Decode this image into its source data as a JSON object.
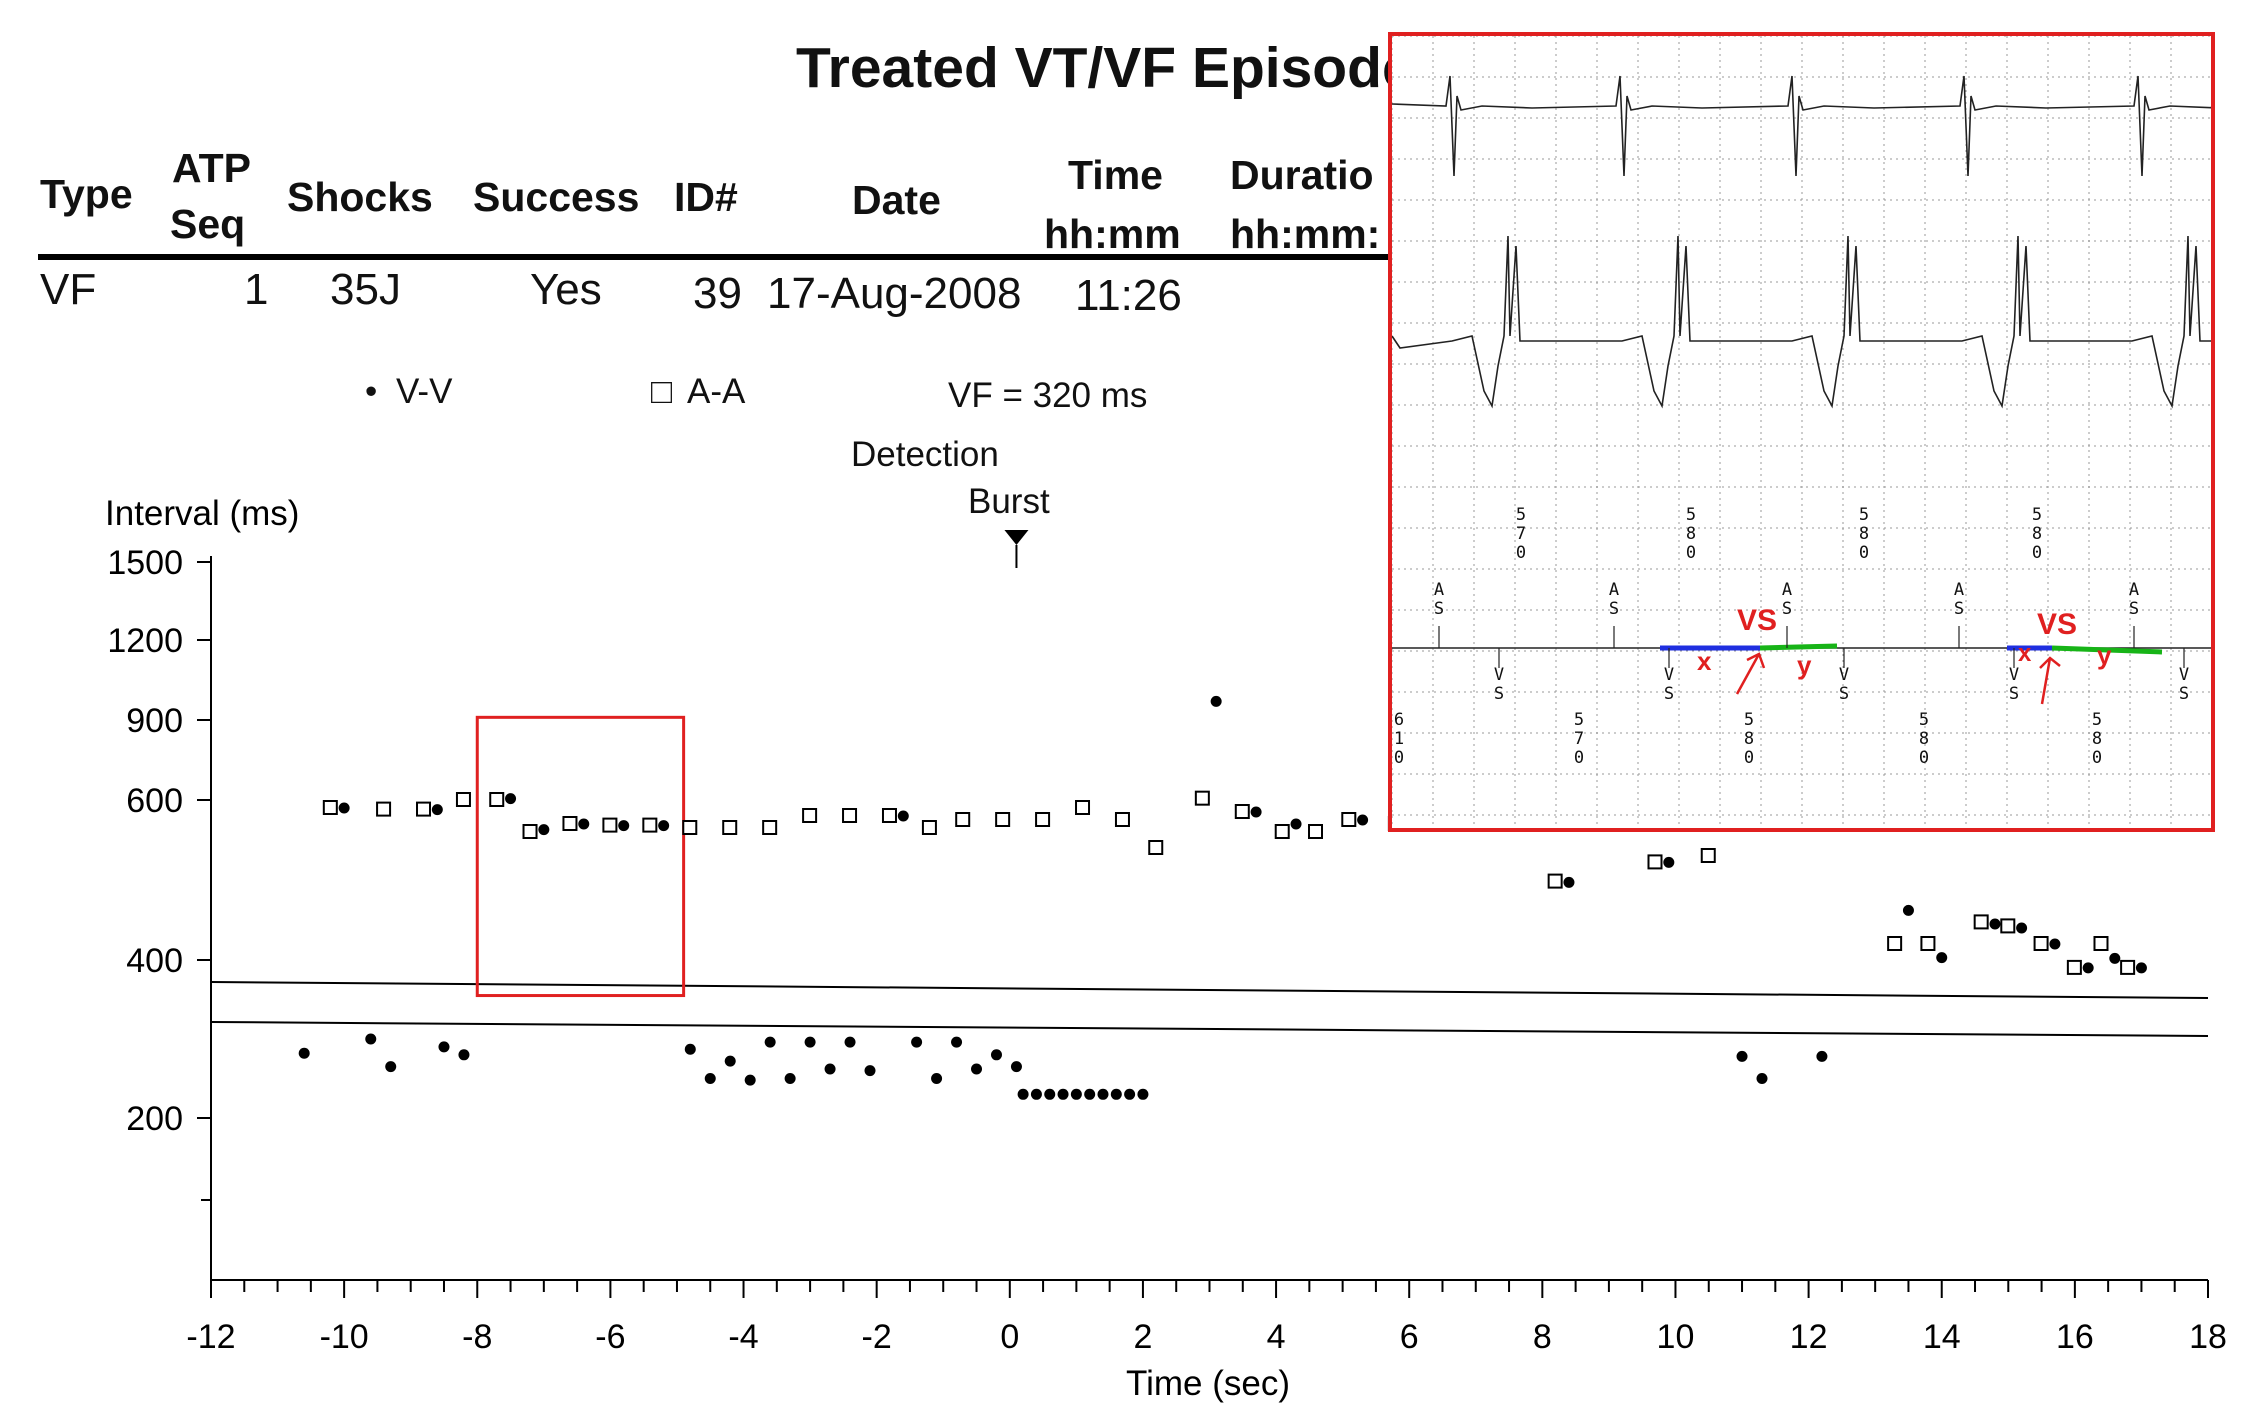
{
  "report": {
    "title": "Treated VT/VF Episodes",
    "columns": [
      "Type",
      "ATP Seq",
      "Shocks",
      "Success",
      "ID#",
      "Date",
      "Time hh:mm",
      "Duration hh:mm:"
    ],
    "col_type": "Type",
    "col_atp_1": "ATP",
    "col_atp_2": "Seq",
    "col_shocks": "Shocks",
    "col_success": "Success",
    "col_id": "ID#",
    "col_date": "Date",
    "col_time_1": "Time",
    "col_time_2": "hh:mm",
    "col_dur_1": "Duratio",
    "col_dur_2": "hh:mm:",
    "row": {
      "type": "VF",
      "atp_seq": "1",
      "shocks": "35J",
      "success": "Yes",
      "id": "39",
      "date": "17-Aug-2008",
      "time": "11:26"
    }
  },
  "legend": {
    "vv_label": "V-V",
    "aa_label": "A-A",
    "vf_zone": "VF = 320 ms",
    "vv_symbol": "•",
    "aa_symbol": "□"
  },
  "annotations": {
    "detection": "Detection",
    "burst": "Burst",
    "arrow_symbol": "▼"
  },
  "chart_data": {
    "type": "scatter",
    "title": "Treated VT/VF Episodes",
    "xlabel": "Time (sec)",
    "ylabel": "Interval (ms)",
    "xlim": [
      -12,
      18
    ],
    "x_ticks": [
      -12,
      -10,
      -8,
      -6,
      -4,
      -2,
      0,
      2,
      4,
      6,
      8,
      10,
      12,
      14,
      16,
      18
    ],
    "y_ticks": [
      1500,
      1200,
      900,
      600,
      400,
      200
    ],
    "y_scale": "piecewise",
    "vf_threshold_ms": 320,
    "series": [
      {
        "name": "A-A",
        "marker": "open-square",
        "points": [
          [
            -10.2,
            590
          ],
          [
            -9.4,
            588
          ],
          [
            -8.8,
            588
          ],
          [
            -8.2,
            600
          ],
          [
            -7.7,
            600
          ],
          [
            -7.2,
            560
          ],
          [
            -6.6,
            570
          ],
          [
            -6.0,
            568
          ],
          [
            -5.4,
            568
          ],
          [
            -4.8,
            565
          ],
          [
            -4.2,
            565
          ],
          [
            -3.6,
            565
          ],
          [
            -3.0,
            580
          ],
          [
            -2.4,
            580
          ],
          [
            -1.8,
            580
          ],
          [
            -1.2,
            565
          ],
          [
            -0.7,
            575
          ],
          [
            -0.1,
            575
          ],
          [
            0.5,
            575
          ],
          [
            1.1,
            590
          ],
          [
            1.7,
            575
          ],
          [
            2.2,
            540
          ],
          [
            2.9,
            605
          ],
          [
            3.5,
            585
          ],
          [
            4.1,
            560
          ],
          [
            4.6,
            560
          ],
          [
            5.1,
            575
          ],
          [
            5.8,
            570
          ],
          [
            8.2,
            498
          ],
          [
            9.7,
            522
          ],
          [
            10.5,
            530
          ],
          [
            13.3,
            420
          ],
          [
            13.8,
            420
          ],
          [
            14.6,
            447
          ],
          [
            15.0,
            442
          ],
          [
            15.5,
            420
          ],
          [
            16.0,
            390
          ],
          [
            16.4,
            420
          ],
          [
            16.8,
            390
          ]
        ]
      },
      {
        "name": "V-V",
        "marker": "dot",
        "points": [
          [
            -10.0,
            590
          ],
          [
            -8.6,
            588
          ],
          [
            -7.5,
            605
          ],
          [
            -7.0,
            563
          ],
          [
            -6.4,
            570
          ],
          [
            -5.8,
            568
          ],
          [
            -5.2,
            568
          ],
          [
            -1.6,
            580
          ],
          [
            3.1,
            970
          ],
          [
            3.7,
            585
          ],
          [
            4.3,
            570
          ],
          [
            5.3,
            575
          ],
          [
            8.4,
            497
          ],
          [
            9.9,
            522
          ],
          [
            13.5,
            462
          ],
          [
            14.0,
            403
          ],
          [
            14.8,
            445
          ],
          [
            15.2,
            440
          ],
          [
            15.7,
            420
          ],
          [
            16.2,
            390
          ],
          [
            16.6,
            402
          ],
          [
            17.0,
            390
          ],
          [
            -10.6,
            282
          ],
          [
            -9.6,
            300
          ],
          [
            -9.3,
            265
          ],
          [
            -8.5,
            290
          ],
          [
            -8.2,
            280
          ],
          [
            -4.8,
            287
          ],
          [
            -4.5,
            250
          ],
          [
            -4.2,
            272
          ],
          [
            -3.9,
            248
          ],
          [
            -3.6,
            296
          ],
          [
            -3.3,
            250
          ],
          [
            -3.0,
            296
          ],
          [
            -2.7,
            262
          ],
          [
            -2.4,
            296
          ],
          [
            -2.1,
            260
          ],
          [
            -1.4,
            296
          ],
          [
            -1.1,
            250
          ],
          [
            -0.8,
            296
          ],
          [
            -0.5,
            262
          ],
          [
            -0.2,
            280
          ],
          [
            0.1,
            265
          ],
          [
            0.2,
            230
          ],
          [
            0.4,
            230
          ],
          [
            0.6,
            230
          ],
          [
            0.8,
            230
          ],
          [
            1.0,
            230
          ],
          [
            1.2,
            230
          ],
          [
            1.4,
            230
          ],
          [
            1.6,
            230
          ],
          [
            1.8,
            230
          ],
          [
            2.0,
            230
          ],
          [
            11.0,
            278
          ],
          [
            11.3,
            250
          ],
          [
            12.2,
            278
          ]
        ]
      }
    ],
    "highlight_box": {
      "x_range": [
        -8.0,
        -4.9
      ],
      "y_range": [
        355,
        910
      ],
      "color": "#e02020"
    }
  },
  "egm_inset": {
    "border_color": "#e02020",
    "marker_labels_top": [
      "570",
      "580",
      "580",
      "580"
    ],
    "marker_labels_bottom": [
      "610",
      "570",
      "580",
      "580",
      "580"
    ],
    "as_label": "AS",
    "vs_label": "VS",
    "red_vs_1": "VS",
    "red_vs_2": "VS",
    "x_1": "x",
    "y_1": "y",
    "x_2": "x",
    "y_2": "y",
    "x_segment_color": "#1f2fe0",
    "y_segment_color": "#17b417",
    "annotation_color": "#e02020"
  }
}
